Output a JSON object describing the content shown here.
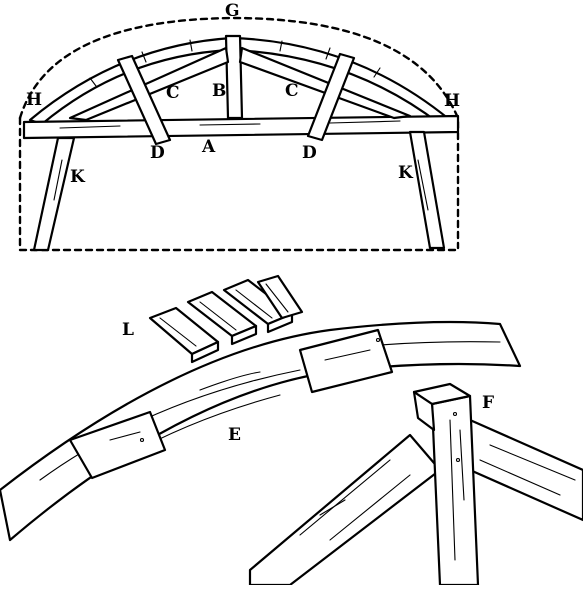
{
  "figure": {
    "labels": {
      "top_point": "G",
      "left_end": "H",
      "right_end": "H",
      "center_post": "B",
      "left_brace": "C",
      "right_brace": "C",
      "left_strut": "D",
      "right_strut": "D",
      "tie_beam": "A",
      "left_leg": "K",
      "right_leg": "K",
      "boards": "L",
      "rib_joint": "E",
      "post_joint": "F"
    }
  }
}
